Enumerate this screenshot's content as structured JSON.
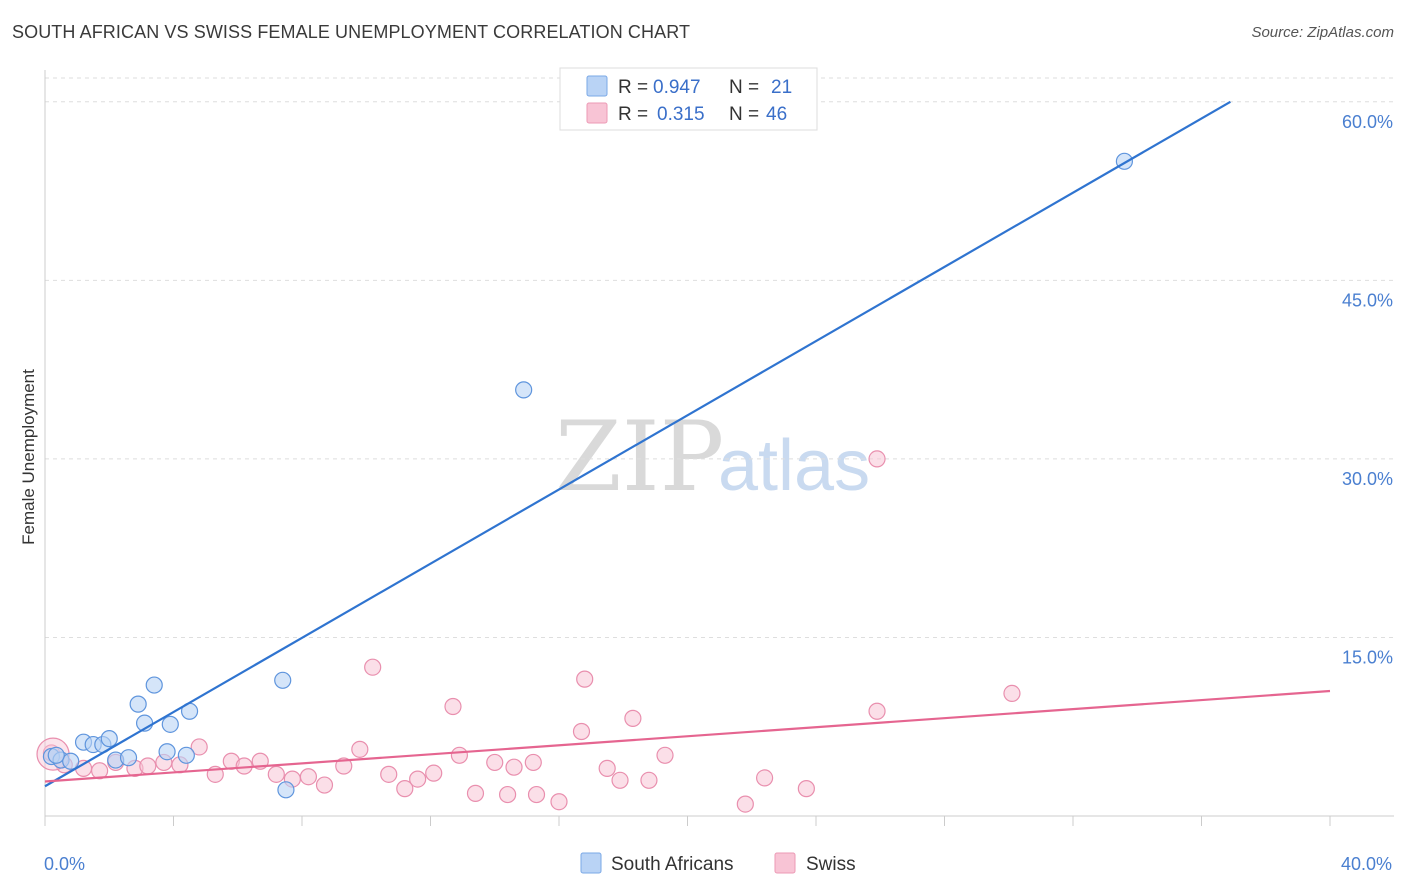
{
  "title": "SOUTH AFRICAN VS SWISS FEMALE UNEMPLOYMENT CORRELATION CHART",
  "source": "Source: ZipAtlas.com",
  "watermark": {
    "zip": "ZIP",
    "atlas": "atlas"
  },
  "colors": {
    "blue": "#2f74d0",
    "blue_fill": "#b9d3f5",
    "pink": "#e56590",
    "pink_fill": "#f8c4d5",
    "grid": "#dedede",
    "tick_text": "#4a7fd0"
  },
  "legend": {
    "rows": [
      {
        "r_label": "R =",
        "r_value": "0.947",
        "n_label": "N =",
        "n_value": "21"
      },
      {
        "r_label": "R =",
        "r_value": "0.315",
        "n_label": "N =",
        "n_value": "46"
      }
    ]
  },
  "bottom_legend": [
    "South Africans",
    "Swiss"
  ],
  "chart_data": {
    "type": "scatter",
    "title": "SOUTH AFRICAN VS SWISS FEMALE UNEMPLOYMENT CORRELATION CHART",
    "xlabel": "",
    "ylabel": "Female Unemployment",
    "xlim": [
      0,
      40
    ],
    "ylim": [
      0,
      62
    ],
    "x_tick_labels": [
      "0.0%",
      "40.0%"
    ],
    "y_ticks": [
      15,
      30,
      45,
      60
    ],
    "y_tick_labels": [
      "15.0%",
      "30.0%",
      "45.0%",
      "60.0%"
    ],
    "series": [
      {
        "name": "South Africans",
        "color": "#2f74d0",
        "r": 0.947,
        "n": 21,
        "trendline": {
          "x": [
            0,
            36.9
          ],
          "y": [
            2.5,
            60.0
          ]
        },
        "points": [
          [
            0.2,
            5.0
          ],
          [
            0.5,
            4.7
          ],
          [
            0.8,
            4.6
          ],
          [
            1.2,
            6.2
          ],
          [
            1.5,
            6.0
          ],
          [
            1.8,
            6.0
          ],
          [
            2.0,
            6.5
          ],
          [
            2.2,
            4.7
          ],
          [
            2.6,
            4.9
          ],
          [
            2.9,
            9.4
          ],
          [
            3.1,
            7.8
          ],
          [
            3.4,
            11.0
          ],
          [
            3.8,
            5.4
          ],
          [
            3.9,
            7.7
          ],
          [
            4.4,
            5.1
          ],
          [
            4.5,
            8.8
          ],
          [
            7.4,
            11.4
          ],
          [
            7.5,
            2.2
          ],
          [
            14.9,
            35.8
          ],
          [
            33.6,
            55.0
          ],
          [
            0.35,
            5.1
          ]
        ]
      },
      {
        "name": "Swiss",
        "color": "#e56590",
        "r": 0.315,
        "n": 46,
        "trendline": {
          "x": [
            0,
            40
          ],
          "y": [
            2.9,
            10.5
          ]
        },
        "points": [
          [
            0.2,
            5.3
          ],
          [
            0.6,
            4.3
          ],
          [
            1.2,
            4.0
          ],
          [
            1.7,
            3.8
          ],
          [
            2.2,
            4.5
          ],
          [
            2.8,
            4.0
          ],
          [
            3.2,
            4.2
          ],
          [
            3.7,
            4.5
          ],
          [
            4.2,
            4.3
          ],
          [
            4.8,
            5.8
          ],
          [
            5.3,
            3.5
          ],
          [
            5.8,
            4.6
          ],
          [
            6.2,
            4.2
          ],
          [
            6.7,
            4.6
          ],
          [
            7.2,
            3.5
          ],
          [
            7.7,
            3.1
          ],
          [
            8.2,
            3.3
          ],
          [
            8.7,
            2.6
          ],
          [
            9.3,
            4.2
          ],
          [
            9.8,
            5.6
          ],
          [
            10.2,
            12.5
          ],
          [
            10.7,
            3.5
          ],
          [
            11.2,
            2.3
          ],
          [
            11.6,
            3.1
          ],
          [
            12.1,
            3.6
          ],
          [
            12.7,
            9.2
          ],
          [
            12.9,
            5.1
          ],
          [
            13.4,
            1.9
          ],
          [
            14.0,
            4.5
          ],
          [
            14.4,
            1.8
          ],
          [
            14.6,
            4.1
          ],
          [
            15.2,
            4.5
          ],
          [
            15.3,
            1.8
          ],
          [
            16.0,
            1.2
          ],
          [
            16.7,
            7.1
          ],
          [
            16.8,
            11.5
          ],
          [
            17.5,
            4.0
          ],
          [
            17.9,
            3.0
          ],
          [
            18.3,
            8.2
          ],
          [
            18.8,
            3.0
          ],
          [
            19.3,
            5.1
          ],
          [
            21.8,
            1.0
          ],
          [
            22.4,
            3.2
          ],
          [
            23.7,
            2.3
          ],
          [
            25.9,
            8.8
          ],
          [
            30.1,
            10.3
          ]
        ],
        "extra_points": [
          [
            25.9,
            30.0
          ]
        ]
      }
    ]
  }
}
